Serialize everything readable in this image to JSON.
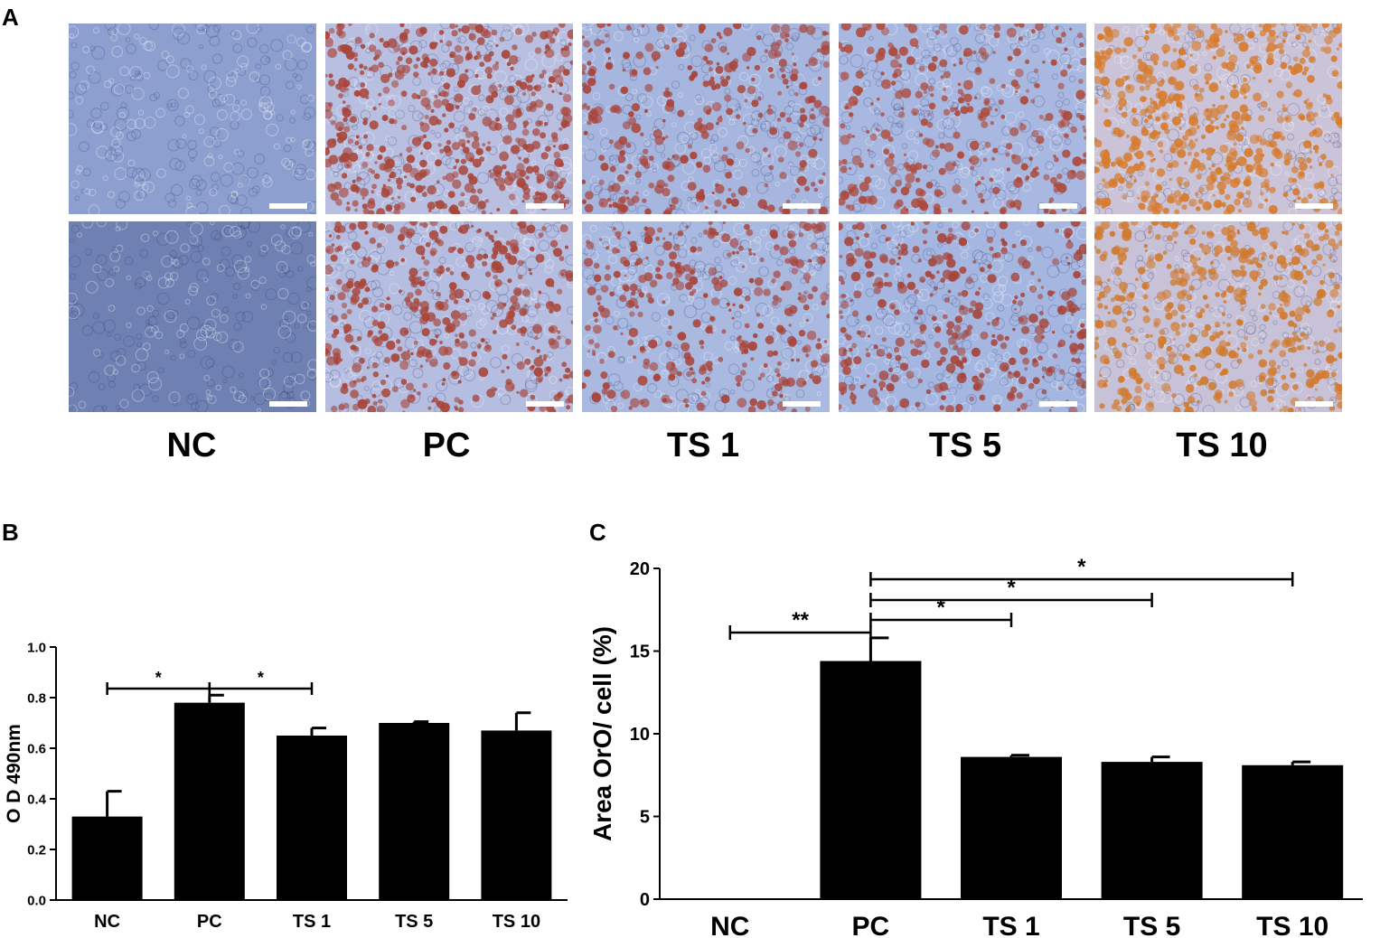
{
  "panel_a": {
    "letter": "A",
    "groups": [
      "NC",
      "PC",
      "TS 1",
      "TS 5",
      "TS 10"
    ],
    "images": [
      {
        "group": "NC",
        "row": 1,
        "base": "#8c9fcf",
        "stain": "#6f82bf",
        "stain_level": 0.0
      },
      {
        "group": "PC",
        "row": 1,
        "base": "#b9bfe0",
        "stain": "#a8463a",
        "stain_level": 0.7
      },
      {
        "group": "TS 1",
        "row": 1,
        "base": "#a7b6de",
        "stain": "#a9443a",
        "stain_level": 0.45
      },
      {
        "group": "TS 5",
        "row": 1,
        "base": "#a9b8e0",
        "stain": "#ad4a3b",
        "stain_level": 0.45
      },
      {
        "group": "TS 10",
        "row": 1,
        "base": "#cbc4d8",
        "stain": "#d77b2c",
        "stain_level": 0.75
      },
      {
        "group": "NC",
        "row": 2,
        "base": "#6f80b2",
        "stain": "#56689f",
        "stain_level": 0.0
      },
      {
        "group": "PC",
        "row": 2,
        "base": "#b5bde0",
        "stain": "#a8463a",
        "stain_level": 0.6
      },
      {
        "group": "TS 1",
        "row": 2,
        "base": "#a9b9e0",
        "stain": "#a9443a",
        "stain_level": 0.45
      },
      {
        "group": "TS 5",
        "row": 2,
        "base": "#a5b7e0",
        "stain": "#a6453b",
        "stain_level": 0.5
      },
      {
        "group": "TS 10",
        "row": 2,
        "base": "#c8c2d8",
        "stain": "#d17a2d",
        "stain_level": 0.65
      }
    ]
  },
  "chart_data": [
    {
      "panel": "B",
      "type": "bar",
      "categories": [
        "NC",
        "PC",
        "TS 1",
        "TS 5",
        "TS 10"
      ],
      "values": [
        0.33,
        0.78,
        0.65,
        0.7,
        0.67
      ],
      "errors": [
        0.1,
        0.03,
        0.03,
        0.005,
        0.07
      ],
      "ylabel": "O D 490nm",
      "ylim": [
        0,
        1.0
      ],
      "yticks": [
        "0.0",
        "0.2",
        "0.4",
        "0.6",
        "0.8",
        "1.0"
      ],
      "bar_color": "#000000",
      "significance": [
        {
          "from": "NC",
          "to": "PC",
          "label": "*"
        },
        {
          "from": "PC",
          "to": "TS 1",
          "label": "*"
        }
      ]
    },
    {
      "panel": "C",
      "type": "bar",
      "categories": [
        "NC",
        "PC",
        "TS 1",
        "TS 5",
        "TS 10"
      ],
      "values": [
        0.05,
        14.4,
        8.6,
        8.3,
        8.1
      ],
      "errors": [
        0.0,
        1.4,
        0.1,
        0.3,
        0.2
      ],
      "ylabel": "Area OrO/ cell (%)",
      "ylim": [
        0,
        20
      ],
      "yticks": [
        "0",
        "5",
        "10",
        "15",
        "20"
      ],
      "bar_color": "#000000",
      "significance": [
        {
          "from": "NC",
          "to": "PC",
          "label": "**"
        },
        {
          "from": "PC",
          "to": "TS 1",
          "label": "*"
        },
        {
          "from": "PC",
          "to": "TS 5",
          "label": "*"
        },
        {
          "from": "PC",
          "to": "TS 10",
          "label": "*"
        }
      ]
    }
  ]
}
